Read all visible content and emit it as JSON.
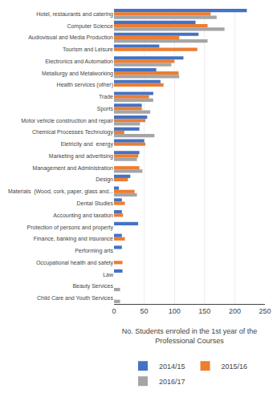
{
  "chart_data": {
    "type": "bar",
    "orientation": "horizontal",
    "categories": [
      "Hotel, restaurants and catering",
      "Computer Science",
      "Audiovisual and Media Production",
      "Tourism and Leisure",
      "Electronics and Automation",
      "Metallurgy and Metalworking",
      "Health services (other)",
      "Trade",
      "Sports",
      "Motor vehicle construction and repair",
      "Chemical Processes Technology",
      "Eletricity and  energy",
      "Marketing and advertising",
      "Management and Administration",
      "Design",
      "Materials  (Wood, cork, paper, glass and...",
      "Dental Studies",
      "Accounting and taxation",
      "Protection of persons and property",
      "Finance, banking and insurance",
      "Performing arts",
      "Occupational health and safety",
      "Law",
      "Beauty Services",
      "Child Care and Youth Services"
    ],
    "series": [
      {
        "name": "2014/15",
        "color": "#4472c4",
        "values": [
          220,
          135,
          140,
          75,
          115,
          70,
          77,
          65,
          46,
          55,
          42,
          50,
          42,
          0,
          27,
          8,
          13,
          13,
          40,
          13,
          13,
          0,
          14,
          0,
          0
        ]
      },
      {
        "name": "2015/16",
        "color": "#ed7d31",
        "values": [
          160,
          155,
          108,
          138,
          100,
          107,
          82,
          58,
          46,
          52,
          17,
          52,
          40,
          42,
          23,
          34,
          18,
          15,
          0,
          18,
          0,
          14,
          0,
          0,
          0
        ]
      },
      {
        "name": "2016/17",
        "color": "#a5a5a5",
        "values": [
          170,
          183,
          155,
          0,
          95,
          108,
          0,
          65,
          60,
          43,
          67,
          0,
          38,
          47,
          0,
          38,
          0,
          0,
          0,
          0,
          0,
          0,
          0,
          10,
          10
        ]
      }
    ],
    "xlabel": "No. Students enroled in the 1st year of the\nProfessional Courses",
    "xlim": [
      0,
      250
    ],
    "xticks": [
      0,
      50,
      100,
      150,
      200,
      250
    ],
    "grid": true,
    "legend": "bottom"
  }
}
